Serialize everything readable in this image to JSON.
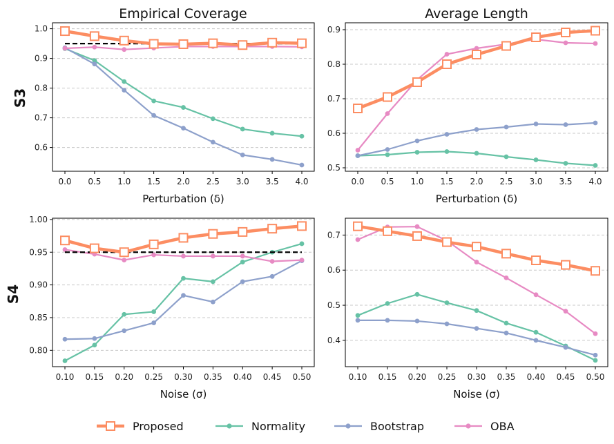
{
  "chart_data": [
    {
      "type": "line",
      "title": "Empirical Coverage",
      "row_label": "S3",
      "xlabel": "Perturbation (δ)",
      "ylabel": "",
      "x": [
        "0.0",
        "0.5",
        "1.0",
        "1.5",
        "2.0",
        "2.5",
        "3.0",
        "3.5",
        "4.0"
      ],
      "ylim": [
        0.52,
        1.02
      ],
      "yticks": [
        0.6,
        0.7,
        0.8,
        0.9,
        1.0
      ],
      "ytick_labels": [
        "0.6",
        "0.7",
        "0.8",
        "0.9",
        "1.0"
      ],
      "grid": "horizontal-dashed",
      "reference_line": 0.95,
      "series": [
        {
          "name": "Proposed",
          "values": [
            0.992,
            0.975,
            0.96,
            0.949,
            0.948,
            0.951,
            0.945,
            0.953,
            0.951
          ]
        },
        {
          "name": "Normality",
          "values": [
            0.933,
            0.893,
            0.822,
            0.757,
            0.735,
            0.697,
            0.662,
            0.648,
            0.638
          ]
        },
        {
          "name": "Bootstrap",
          "values": [
            0.936,
            0.881,
            0.793,
            0.708,
            0.665,
            0.618,
            0.575,
            0.56,
            0.541
          ]
        },
        {
          "name": "OBA",
          "values": [
            0.934,
            0.938,
            0.93,
            0.935,
            0.94,
            0.94,
            0.94,
            0.94,
            0.939
          ]
        }
      ]
    },
    {
      "type": "line",
      "title": "Average Length",
      "row_label": "",
      "xlabel": "Perturbation (δ)",
      "ylabel": "",
      "x": [
        "0.0",
        "0.5",
        "1.0",
        "1.5",
        "2.0",
        "2.5",
        "3.0",
        "3.5",
        "4.0"
      ],
      "ylim": [
        0.49,
        0.92
      ],
      "yticks": [
        0.5,
        0.6,
        0.7,
        0.8,
        0.9
      ],
      "ytick_labels": [
        "0.5",
        "0.6",
        "0.7",
        "0.8",
        "0.9"
      ],
      "grid": "horizontal-dashed",
      "series": [
        {
          "name": "Proposed",
          "values": [
            0.672,
            0.705,
            0.748,
            0.8,
            0.828,
            0.853,
            0.878,
            0.892,
            0.897
          ]
        },
        {
          "name": "Normality",
          "values": [
            0.535,
            0.538,
            0.545,
            0.547,
            0.542,
            0.532,
            0.523,
            0.513,
            0.507
          ]
        },
        {
          "name": "Bootstrap",
          "values": [
            0.535,
            0.553,
            0.578,
            0.597,
            0.611,
            0.618,
            0.627,
            0.625,
            0.63
          ]
        },
        {
          "name": "OBA",
          "values": [
            0.551,
            0.657,
            0.755,
            0.829,
            0.846,
            0.858,
            0.872,
            0.862,
            0.86
          ]
        }
      ]
    },
    {
      "type": "line",
      "title": "",
      "row_label": "S4",
      "xlabel": "Noise (σ)",
      "ylabel": "",
      "x": [
        "0.10",
        "0.15",
        "0.20",
        "0.25",
        "0.30",
        "0.35",
        "0.40",
        "0.45",
        "0.50"
      ],
      "ylim": [
        0.775,
        1.002
      ],
      "yticks": [
        0.8,
        0.85,
        0.9,
        0.95,
        1.0
      ],
      "ytick_labels": [
        "0.80",
        "0.85",
        "0.90",
        "0.95",
        "1.00"
      ],
      "grid": "horizontal-dashed",
      "reference_line": 0.95,
      "series": [
        {
          "name": "Proposed",
          "values": [
            0.968,
            0.956,
            0.95,
            0.962,
            0.972,
            0.978,
            0.981,
            0.986,
            0.99
          ]
        },
        {
          "name": "Normality",
          "values": [
            0.784,
            0.808,
            0.855,
            0.859,
            0.91,
            0.905,
            0.935,
            0.95,
            0.963
          ]
        },
        {
          "name": "Bootstrap",
          "values": [
            0.817,
            0.818,
            0.83,
            0.842,
            0.884,
            0.874,
            0.905,
            0.913,
            0.937
          ]
        },
        {
          "name": "OBA",
          "values": [
            0.954,
            0.947,
            0.938,
            0.946,
            0.944,
            0.944,
            0.944,
            0.936,
            0.938
          ]
        }
      ]
    },
    {
      "type": "line",
      "title": "",
      "row_label": "",
      "xlabel": "Noise (σ)",
      "ylabel": "",
      "x": [
        "0.10",
        "0.15",
        "0.20",
        "0.25",
        "0.30",
        "0.35",
        "0.40",
        "0.45",
        "0.50"
      ],
      "ylim": [
        0.325,
        0.748
      ],
      "yticks": [
        0.4,
        0.5,
        0.6,
        0.7
      ],
      "ytick_labels": [
        "0.4",
        "0.5",
        "0.6",
        "0.7"
      ],
      "grid": "horizontal-dashed",
      "series": [
        {
          "name": "Proposed",
          "values": [
            0.725,
            0.711,
            0.697,
            0.68,
            0.667,
            0.647,
            0.628,
            0.615,
            0.598
          ]
        },
        {
          "name": "Normality",
          "values": [
            0.471,
            0.505,
            0.531,
            0.507,
            0.485,
            0.449,
            0.423,
            0.384,
            0.343
          ]
        },
        {
          "name": "Bootstrap",
          "values": [
            0.457,
            0.457,
            0.455,
            0.447,
            0.434,
            0.421,
            0.4,
            0.38,
            0.358
          ]
        },
        {
          "name": "OBA",
          "values": [
            0.687,
            0.723,
            0.724,
            0.684,
            0.623,
            0.578,
            0.53,
            0.483,
            0.419
          ]
        }
      ]
    }
  ],
  "legend": {
    "placement": "bottom-center",
    "items": [
      {
        "name": "Proposed",
        "color": "#fc8d62"
      },
      {
        "name": "Normality",
        "color": "#66c2a5"
      },
      {
        "name": "Bootstrap",
        "color": "#8da0cb"
      },
      {
        "name": "OBA",
        "color": "#e78ac3"
      }
    ]
  },
  "colors": {
    "proposed": "#fc8d62",
    "normality": "#66c2a5",
    "bootstrap": "#8da0cb",
    "oba": "#e78ac3",
    "reference": "#000000",
    "grid": "#c8c8c8"
  }
}
